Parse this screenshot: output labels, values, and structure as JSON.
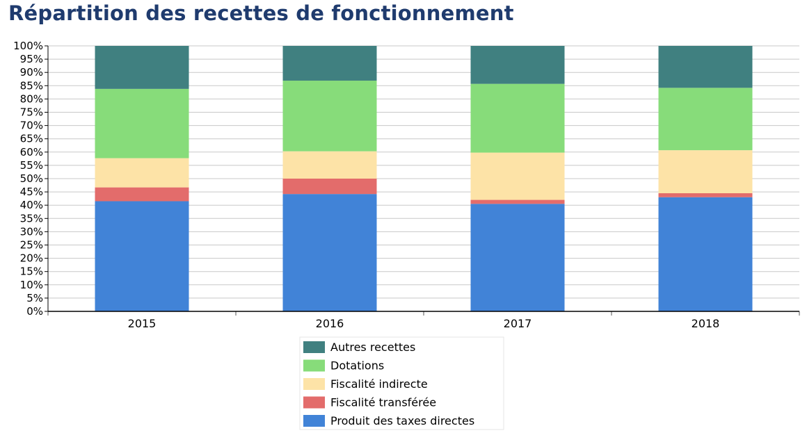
{
  "chart_data": {
    "type": "bar",
    "stacked": true,
    "title": "Répartition des recettes de fonctionnement",
    "xlabel": "",
    "ylabel": "",
    "categories": [
      "2015",
      "2016",
      "2017",
      "2018"
    ],
    "ylim": [
      0,
      100
    ],
    "yticks": [
      "0%",
      "5%",
      "10%",
      "15%",
      "20%",
      "25%",
      "30%",
      "35%",
      "40%",
      "45%",
      "50%",
      "55%",
      "60%",
      "65%",
      "70%",
      "75%",
      "80%",
      "85%",
      "90%",
      "95%",
      "100%"
    ],
    "grid": true,
    "legend_position": "bottom",
    "series": [
      {
        "name": "Produit des taxes directes",
        "color": "#4183d7",
        "values": [
          41.5,
          44.2,
          40.5,
          43.0
        ]
      },
      {
        "name": "Fiscalité transférée",
        "color": "#e36c6b",
        "values": [
          5.2,
          5.8,
          1.5,
          1.5
        ]
      },
      {
        "name": "Fiscalité indirecte",
        "color": "#fde3a7",
        "values": [
          11.0,
          10.3,
          17.8,
          16.2
        ]
      },
      {
        "name": "Dotations",
        "color": "#87dc7a",
        "values": [
          26.1,
          26.6,
          25.9,
          23.5
        ]
      },
      {
        "name": "Autres recettes",
        "color": "#408080",
        "values": [
          16.2,
          13.1,
          14.3,
          15.8
        ]
      }
    ]
  }
}
